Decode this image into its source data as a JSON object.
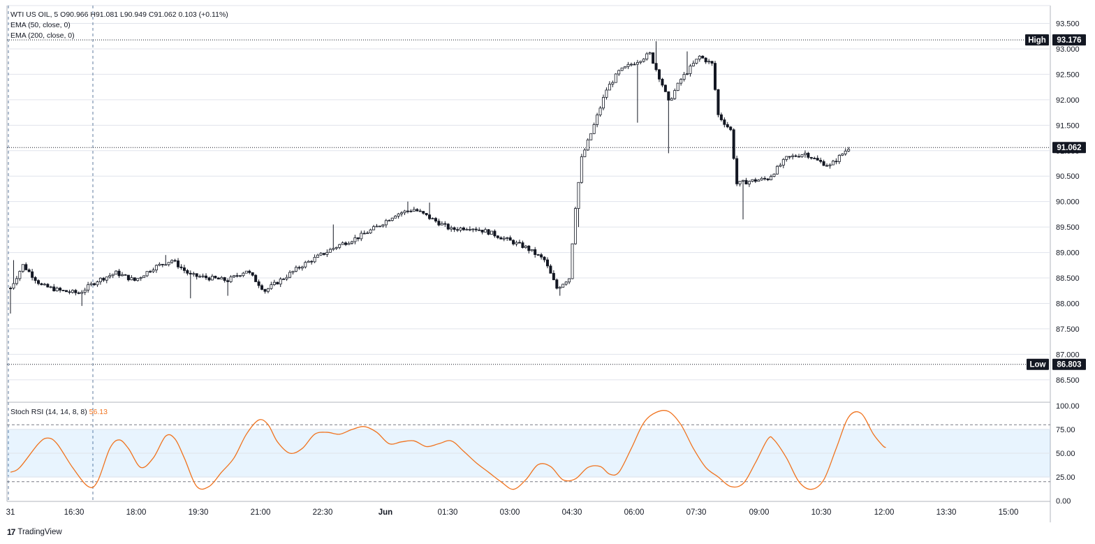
{
  "legend": {
    "symbol_line": "WTI US OIL, 5  O90.966  H91.081  L90.949  C91.062  0.103 (+0.11%)",
    "ema50": "EMA (50, close, 0)",
    "ema200": "EMA (200, close, 0)",
    "stoch_label": "Stoch RSI (14, 14, 8, 8)",
    "stoch_value": "56.13"
  },
  "footer": {
    "brand": "TradingView",
    "logo_glyph": "17"
  },
  "colors": {
    "candle": "#131722",
    "stoch_line": "#f0731f",
    "stoch_band": "#2196f3",
    "grid": "#e0e3eb",
    "label_bg": "#131722",
    "label_text": "#ffffff"
  },
  "chart_data": [
    {
      "type": "candlestick",
      "symbol": "WTI US OIL",
      "interval": "5",
      "ylim": [
        86.3,
        93.85
      ],
      "price_ticks": [
        "93.500",
        "93.000",
        "92.500",
        "92.000",
        "91.500",
        "91.000",
        "90.500",
        "90.000",
        "89.500",
        "89.000",
        "88.500",
        "88.000",
        "87.500",
        "87.000",
        "86.500"
      ],
      "high": {
        "label": "High",
        "value": "93.176"
      },
      "low": {
        "label": "Low",
        "value": "86.803"
      },
      "last": {
        "value": "91.062"
      },
      "x_labels": [
        "31",
        "16:30",
        "18:00",
        "19:30",
        "21:00",
        "22:30",
        "Jun",
        "01:30",
        "03:00",
        "04:30",
        "06:00",
        "07:30",
        "09:00",
        "10:30",
        "12:00",
        "13:30",
        "15:00"
      ],
      "anchors": [
        [
          0,
          88.3
        ],
        [
          4,
          88.75
        ],
        [
          10,
          88.35
        ],
        [
          16,
          88.25
        ],
        [
          22,
          88.2
        ],
        [
          28,
          88.45
        ],
        [
          34,
          88.6
        ],
        [
          40,
          88.45
        ],
        [
          46,
          88.7
        ],
        [
          52,
          88.85
        ],
        [
          58,
          88.55
        ],
        [
          64,
          88.5
        ],
        [
          70,
          88.45
        ],
        [
          76,
          88.65
        ],
        [
          82,
          88.25
        ],
        [
          88,
          88.5
        ],
        [
          94,
          88.75
        ],
        [
          100,
          88.95
        ],
        [
          106,
          89.15
        ],
        [
          112,
          89.3
        ],
        [
          118,
          89.5
        ],
        [
          124,
          89.75
        ],
        [
          130,
          89.85
        ],
        [
          136,
          89.65
        ],
        [
          142,
          89.45
        ],
        [
          148,
          89.5
        ],
        [
          154,
          89.4
        ],
        [
          160,
          89.25
        ],
        [
          166,
          89.1
        ],
        [
          172,
          88.85
        ],
        [
          176,
          88.3
        ],
        [
          180,
          88.5
        ],
        [
          182,
          89.9
        ],
        [
          184,
          90.85
        ],
        [
          188,
          91.5
        ],
        [
          192,
          92.2
        ],
        [
          196,
          92.55
        ],
        [
          200,
          92.7
        ],
        [
          206,
          92.9
        ],
        [
          210,
          92.3
        ],
        [
          212,
          91.95
        ],
        [
          216,
          92.4
        ],
        [
          222,
          92.85
        ],
        [
          226,
          92.7
        ],
        [
          228,
          91.7
        ],
        [
          232,
          91.4
        ],
        [
          234,
          90.35
        ],
        [
          238,
          90.4
        ],
        [
          244,
          90.45
        ],
        [
          250,
          90.85
        ],
        [
          256,
          90.95
        ],
        [
          260,
          90.8
        ],
        [
          264,
          90.7
        ],
        [
          270,
          91.06
        ]
      ],
      "spikes": [
        {
          "i": 0,
          "low": 87.8
        },
        {
          "i": 1,
          "high": 88.85
        },
        {
          "i": 23,
          "low": 87.95
        },
        {
          "i": 50,
          "high": 88.95
        },
        {
          "i": 58,
          "low": 88.1
        },
        {
          "i": 70,
          "low": 88.15
        },
        {
          "i": 104,
          "high": 89.55
        },
        {
          "i": 128,
          "high": 90.0
        },
        {
          "i": 135,
          "high": 89.98
        },
        {
          "i": 177,
          "low": 88.15
        },
        {
          "i": 183,
          "low": 89.5
        },
        {
          "i": 202,
          "low": 91.55
        },
        {
          "i": 208,
          "high": 93.15
        },
        {
          "i": 212,
          "low": 90.95
        },
        {
          "i": 218,
          "high": 92.95
        },
        {
          "i": 236,
          "low": 89.65
        }
      ],
      "n_candles": 271
    },
    {
      "type": "line",
      "name": "Stoch RSI",
      "ylim": [
        0,
        100
      ],
      "ticks": [
        "100.00",
        "75.00",
        "50.00",
        "25.00",
        "0.00"
      ],
      "band": [
        20,
        80
      ],
      "values": [
        [
          0,
          30
        ],
        [
          3,
          35
        ],
        [
          9,
          60
        ],
        [
          12,
          66
        ],
        [
          15,
          60
        ],
        [
          20,
          35
        ],
        [
          25,
          15
        ],
        [
          28,
          20
        ],
        [
          32,
          55
        ],
        [
          35,
          64
        ],
        [
          38,
          55
        ],
        [
          42,
          35
        ],
        [
          46,
          45
        ],
        [
          50,
          68
        ],
        [
          53,
          65
        ],
        [
          56,
          45
        ],
        [
          60,
          15
        ],
        [
          64,
          15
        ],
        [
          68,
          30
        ],
        [
          72,
          45
        ],
        [
          76,
          70
        ],
        [
          80,
          85
        ],
        [
          83,
          80
        ],
        [
          86,
          62
        ],
        [
          90,
          50
        ],
        [
          94,
          55
        ],
        [
          98,
          70
        ],
        [
          102,
          72
        ],
        [
          106,
          70
        ],
        [
          110,
          75
        ],
        [
          114,
          78
        ],
        [
          118,
          72
        ],
        [
          122,
          60
        ],
        [
          126,
          62
        ],
        [
          130,
          63
        ],
        [
          134,
          57
        ],
        [
          138,
          60
        ],
        [
          142,
          63
        ],
        [
          146,
          52
        ],
        [
          150,
          40
        ],
        [
          154,
          30
        ],
        [
          158,
          20
        ],
        [
          162,
          12
        ],
        [
          166,
          22
        ],
        [
          170,
          38
        ],
        [
          174,
          36
        ],
        [
          178,
          22
        ],
        [
          182,
          23
        ],
        [
          186,
          35
        ],
        [
          190,
          36
        ],
        [
          193,
          28
        ],
        [
          196,
          30
        ],
        [
          200,
          55
        ],
        [
          204,
          82
        ],
        [
          208,
          93
        ],
        [
          212,
          94
        ],
        [
          216,
          80
        ],
        [
          220,
          55
        ],
        [
          224,
          35
        ],
        [
          228,
          25
        ],
        [
          232,
          15
        ],
        [
          236,
          18
        ],
        [
          240,
          40
        ],
        [
          244,
          65
        ],
        [
          246,
          64
        ],
        [
          250,
          45
        ],
        [
          254,
          20
        ],
        [
          258,
          12
        ],
        [
          262,
          22
        ],
        [
          266,
          55
        ],
        [
          270,
          88
        ],
        [
          274,
          92
        ],
        [
          278,
          70
        ],
        [
          281,
          58
        ],
        [
          282,
          56
        ]
      ]
    }
  ]
}
